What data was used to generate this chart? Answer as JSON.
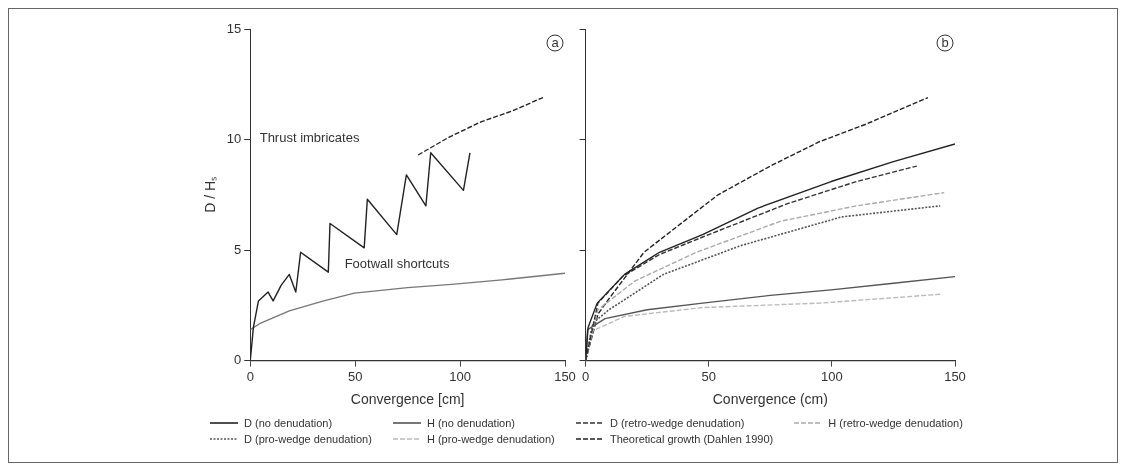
{
  "chart_data": [
    {
      "type": "line",
      "xlabel": "Convergence [cm]",
      "ylabel": "D / Hₛ",
      "xlim": [
        0,
        150
      ],
      "xticks": [
        0,
        50,
        100,
        150
      ],
      "ylim": [
        0,
        15
      ],
      "yticks": [
        0,
        5,
        10,
        15
      ],
      "grid": false,
      "legend": "bottom",
      "marker": "none",
      "annotations": [
        "a",
        "Thrust imbricates",
        "Footwall shortcuts"
      ],
      "series": [
        {
          "color": "#222222",
          "line_style": "solid",
          "x": [
            0,
            1.5,
            3.9,
            8.5,
            10.9,
            14.7,
            18.6,
            21.7,
            24,
            37.2,
            38,
            54.3,
            55.8,
            69.8,
            74.4,
            83.7,
            86,
            101.6,
            104.7
          ],
          "values": [
            0,
            1.5,
            2.7,
            3.1,
            2.7,
            3.4,
            3.9,
            3.1,
            4.9,
            4.0,
            6.2,
            5.1,
            7.3,
            5.7,
            8.4,
            7.0,
            9.4,
            7.7,
            9.4
          ]
        },
        {
          "color": "#777777",
          "line_style": "solid",
          "x": [
            0,
            5,
            18.6,
            35,
            49.6,
            75,
            96,
            120,
            150
          ],
          "values": [
            1.4,
            1.7,
            2.25,
            2.7,
            3.05,
            3.3,
            3.45,
            3.65,
            3.95
          ]
        },
        {
          "color": "#222222",
          "line_style": "dashed",
          "x": [
            80,
            94.6,
            110,
            125,
            139.5
          ],
          "values": [
            9.3,
            10.1,
            10.8,
            11.3,
            11.9
          ]
        }
      ]
    },
    {
      "type": "line",
      "xlabel": "Convergence (cm)",
      "xlim": [
        0,
        150
      ],
      "xticks": [
        0,
        50,
        100,
        150
      ],
      "ylim": [
        0,
        15
      ],
      "yticks": [
        0,
        5,
        10,
        15
      ],
      "tick_labels": "x",
      "grid": false,
      "legend": "bottom",
      "marker": "none",
      "annotations": [
        "b"
      ],
      "series": [
        {
          "name": "D (no denudation)",
          "color": "#222222",
          "line_style": "solid",
          "x": [
            0,
            1,
            4.7,
            15.8,
            30,
            47.5,
            70,
            99.7,
            125,
            150
          ],
          "values": [
            0,
            1.5,
            2.6,
            3.9,
            4.9,
            5.7,
            6.9,
            8.1,
            9.0,
            9.8
          ]
        },
        {
          "name": "H (no denudation)",
          "color": "#555555",
          "line_style": "solid",
          "x": [
            0,
            0.8,
            7.9,
            25,
            47.5,
            75,
            99.7,
            125,
            150
          ],
          "values": [
            0,
            1.4,
            1.9,
            2.3,
            2.6,
            2.95,
            3.2,
            3.5,
            3.8
          ]
        },
        {
          "name": "D (retro-wedge denudation)",
          "color": "#333333",
          "line_style": "dashed",
          "x": [
            0,
            5,
            15,
            30,
            50,
            82,
            110,
            134.5
          ],
          "values": [
            0,
            2.6,
            3.8,
            4.8,
            5.7,
            7.1,
            8.1,
            8.8
          ]
        },
        {
          "name": "H (retro-wedge denudation)",
          "color": "#aaaaaa",
          "line_style": "dashed",
          "x": [
            0,
            5,
            20,
            45,
            79,
            110,
            145.6
          ],
          "values": [
            0,
            2.3,
            3.6,
            4.9,
            6.3,
            7.0,
            7.6
          ]
        },
        {
          "name": "D (pro-wedge denudation)",
          "color": "#555555",
          "line_style": "dotted",
          "x": [
            0,
            3,
            9.5,
            31.6,
            63,
            104,
            144
          ],
          "values": [
            0,
            1.7,
            2.3,
            3.9,
            5.2,
            6.5,
            7.0
          ]
        },
        {
          "name": "H (pro-wedge denudation)",
          "color": "#bbbbbb",
          "line_style": "dashed",
          "x": [
            0,
            2,
            15.8,
            47.5,
            95,
            144
          ],
          "values": [
            0,
            1.3,
            2.0,
            2.4,
            2.6,
            3.0
          ]
        },
        {
          "name": "Theoretical growth (Dahlen 1990)",
          "color": "#222222",
          "line_style": "dashed",
          "x": [
            0,
            5,
            9.5,
            23.7,
            41,
            53.8,
            75,
            94.9,
            114,
            139
          ],
          "values": [
            0,
            2.1,
            2.8,
            4.9,
            6.4,
            7.5,
            8.8,
            9.9,
            10.7,
            11.9
          ]
        }
      ]
    }
  ]
}
